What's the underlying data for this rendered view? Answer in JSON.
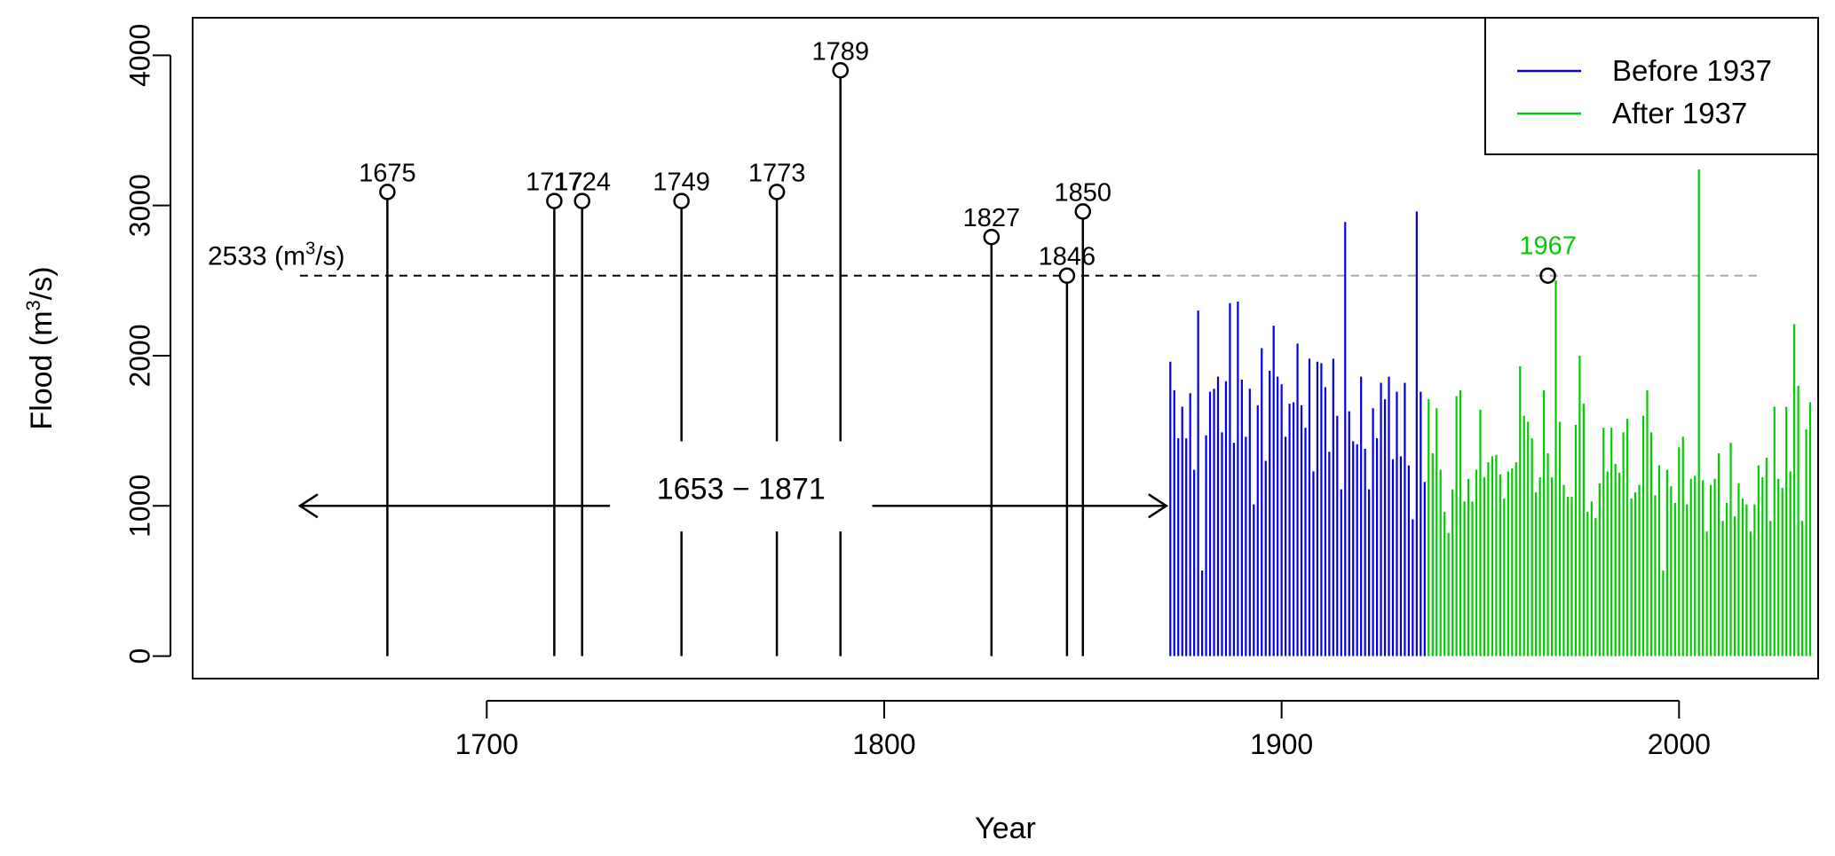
{
  "chart_data": {
    "type": "bar",
    "xlabel": "Year",
    "ylabel_main": "Flood",
    "ylabel_unit": "(m",
    "ylabel_unit_sup": "3",
    "ylabel_unit_end": "/s)",
    "xlim": [
      1626,
      2035
    ],
    "ylim": [
      -150,
      4250
    ],
    "x_ticks": [
      1700,
      1800,
      1900,
      2000
    ],
    "y_ticks": [
      0,
      1000,
      2000,
      3000,
      4000
    ],
    "threshold": {
      "value": 2533,
      "label_value": "2533",
      "label_unit": "(m",
      "label_sup": "3",
      "label_unit_end": "/s)",
      "x_range": [
        1653,
        2020
      ],
      "split_year": 1871
    },
    "historical_period": {
      "label": "1653 − 1871",
      "start": 1653,
      "end": 1871,
      "arrow_y": 1000
    },
    "historical_floods": [
      {
        "year": 1675,
        "value": 3090,
        "label": "1675"
      },
      {
        "year": 1717,
        "value": 3030,
        "label": "1717"
      },
      {
        "year": 1724,
        "value": 3030,
        "label": "1724"
      },
      {
        "year": 1749,
        "value": 3030,
        "label": "1749"
      },
      {
        "year": 1773,
        "value": 3090,
        "label": "1773"
      },
      {
        "year": 1789,
        "value": 3900,
        "label": "1789"
      },
      {
        "year": 1827,
        "value": 2790,
        "label": "1827"
      },
      {
        "year": 1846,
        "value": 2533,
        "label": "1846"
      },
      {
        "year": 1850,
        "value": 2960,
        "label": "1850"
      }
    ],
    "highlight": {
      "year": 1967,
      "value": 2533,
      "label": "1967"
    },
    "series": [
      {
        "name": "Before 1937",
        "color": "#0000ee",
        "start_year": 1872,
        "values": [
          1960,
          1770,
          1450,
          1660,
          1450,
          1750,
          1240,
          2300,
          570,
          1470,
          1760,
          1780,
          1860,
          1490,
          1830,
          2350,
          1420,
          2360,
          1840,
          1460,
          1780,
          1010,
          1670,
          2050,
          1300,
          1900,
          2200,
          1860,
          1810,
          1460,
          1680,
          1690,
          2080,
          1670,
          1520,
          1980,
          1230,
          1960,
          1950,
          1790,
          1360,
          1980,
          1600,
          1110,
          2890,
          1630,
          1430,
          1410,
          1860,
          1380,
          1110,
          1650,
          1450,
          1820,
          1710,
          1860,
          1310,
          1760,
          1330,
          1820,
          1270,
          910,
          2960,
          1760,
          1160
        ]
      },
      {
        "name": "After 1937",
        "color": "#00cc00",
        "start_year": 1937,
        "values": [
          1710,
          1350,
          1650,
          1240,
          960,
          820,
          1110,
          1730,
          1770,
          1030,
          1180,
          1030,
          1240,
          1640,
          1190,
          1290,
          1330,
          1340,
          1210,
          1050,
          1230,
          1250,
          1290,
          1930,
          1600,
          1560,
          1450,
          1090,
          1190,
          1770,
          1350,
          1190,
          2500,
          1560,
          1140,
          1060,
          1060,
          1540,
          2000,
          1680,
          960,
          1030,
          920,
          1150,
          1520,
          1230,
          1520,
          1280,
          1220,
          1490,
          1580,
          1050,
          1090,
          1140,
          1600,
          1770,
          1490,
          1070,
          1270,
          570,
          1240,
          1130,
          1020,
          1390,
          1460,
          1010,
          1180,
          1200,
          3240,
          1170,
          830,
          1140,
          1180,
          1350,
          900,
          1020,
          1420,
          930,
          1150,
          1050,
          1010,
          830,
          1010,
          1270,
          1190,
          1320,
          900,
          1660,
          1180,
          1120,
          1660,
          1230,
          2210,
          1800,
          900,
          1510,
          1690
        ]
      }
    ],
    "legend": {
      "position": "top-right"
    },
    "colors": {
      "before": "#0000ee",
      "after": "#00cc00",
      "threshold_grey": "#aaaaaa",
      "axis": "#000000"
    }
  }
}
